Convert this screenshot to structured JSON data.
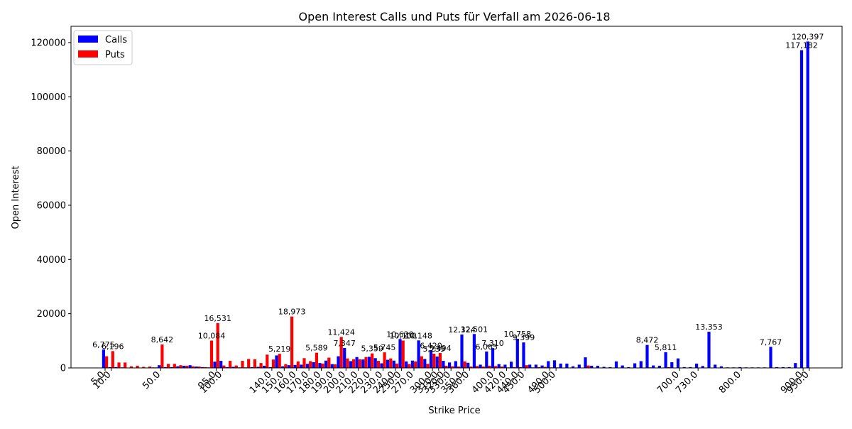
{
  "chart_data": {
    "type": "bar",
    "title": "Open Interest Calls und Puts für Verfall am 2026-06-18",
    "xlabel": "Strike Price",
    "ylabel": "Open Interest",
    "ylim": [
      0,
      126000
    ],
    "yticks": [
      0,
      20000,
      40000,
      60000,
      80000,
      100000,
      120000
    ],
    "xticks_visible": [
      "5.0",
      "10.0",
      "50.0",
      "95.0",
      "100.0",
      "140.0",
      "150.0",
      "160.0",
      "170.0",
      "180.0",
      "190.0",
      "200.0",
      "210.0",
      "220.0",
      "230.0",
      "240.0",
      "250.0",
      "270.0",
      "300.0",
      "310.0",
      "320.0",
      "330.0",
      "350.0",
      "360.0",
      "400.0",
      "420.0",
      "440.0",
      "450.0",
      "490.0",
      "500.0",
      "700.0",
      "730.0",
      "800.0",
      "900.0",
      "950.0",
      "960.0"
    ],
    "legend_position": "top-left",
    "grid": false,
    "series": [
      {
        "name": "Calls",
        "color": "#0000ff"
      },
      {
        "name": "Puts",
        "color": "#ff0000"
      }
    ],
    "strikes": [
      {
        "k": 5,
        "c": 6775,
        "p": 4300
      },
      {
        "k": 10,
        "c": 300,
        "p": 6196
      },
      {
        "k": 15,
        "c": 300,
        "p": 2000
      },
      {
        "k": 20,
        "c": 200,
        "p": 2000
      },
      {
        "k": 25,
        "c": 100,
        "p": 600
      },
      {
        "k": 30,
        "c": 100,
        "p": 800
      },
      {
        "k": 35,
        "c": 100,
        "p": 400
      },
      {
        "k": 40,
        "c": 100,
        "p": 500
      },
      {
        "k": 45,
        "c": 200,
        "p": 200
      },
      {
        "k": 50,
        "c": 1000,
        "p": 8642
      },
      {
        "k": 55,
        "c": 300,
        "p": 1500
      },
      {
        "k": 60,
        "c": 300,
        "p": 1500
      },
      {
        "k": 65,
        "c": 600,
        "p": 1000
      },
      {
        "k": 70,
        "c": 800,
        "p": 800
      },
      {
        "k": 75,
        "c": 1000,
        "p": 600
      },
      {
        "k": 80,
        "c": 500,
        "p": 500
      },
      {
        "k": 85,
        "c": 300,
        "p": 300
      },
      {
        "k": 90,
        "c": 200,
        "p": 10084
      },
      {
        "k": 95,
        "c": 2300,
        "p": 16531
      },
      {
        "k": 100,
        "c": 2600,
        "p": 900
      },
      {
        "k": 105,
        "c": 300,
        "p": 2600
      },
      {
        "k": 110,
        "c": 400,
        "p": 900
      },
      {
        "k": 115,
        "c": 200,
        "p": 2600
      },
      {
        "k": 120,
        "c": 200,
        "p": 3300
      },
      {
        "k": 125,
        "c": 300,
        "p": 3200
      },
      {
        "k": 130,
        "c": 400,
        "p": 1800
      },
      {
        "k": 135,
        "c": 800,
        "p": 4900
      },
      {
        "k": 140,
        "c": 300,
        "p": 3100
      },
      {
        "k": 145,
        "c": 4600,
        "p": 5219
      },
      {
        "k": 150,
        "c": 600,
        "p": 1400
      },
      {
        "k": 155,
        "c": 1000,
        "p": 18973
      },
      {
        "k": 160,
        "c": 1100,
        "p": 2400
      },
      {
        "k": 165,
        "c": 1200,
        "p": 3600
      },
      {
        "k": 170,
        "c": 1500,
        "p": 2500
      },
      {
        "k": 175,
        "c": 2100,
        "p": 5589
      },
      {
        "k": 180,
        "c": 1800,
        "p": 1600
      },
      {
        "k": 185,
        "c": 2700,
        "p": 3800
      },
      {
        "k": 190,
        "c": 1400,
        "p": 1300
      },
      {
        "k": 195,
        "c": 4300,
        "p": 11424
      },
      {
        "k": 200,
        "c": 7347,
        "p": 3500
      },
      {
        "k": 205,
        "c": 2500,
        "p": 3200
      },
      {
        "k": 210,
        "c": 4000,
        "p": 3200
      },
      {
        "k": 215,
        "c": 3100,
        "p": 4000
      },
      {
        "k": 220,
        "c": 4100,
        "p": 5359
      },
      {
        "k": 225,
        "c": 3600,
        "p": 2600
      },
      {
        "k": 230,
        "c": 1700,
        "p": 5745
      },
      {
        "k": 235,
        "c": 3000,
        "p": 3500
      },
      {
        "k": 240,
        "c": 2700,
        "p": 1600
      },
      {
        "k": 250,
        "c": 10620,
        "p": 10100
      },
      {
        "k": 260,
        "c": 2400,
        "p": 1400
      },
      {
        "k": 270,
        "c": 2700,
        "p": 2400
      },
      {
        "k": 280,
        "c": 10148,
        "p": 4300
      },
      {
        "k": 290,
        "c": 3300,
        "p": 1500
      },
      {
        "k": 300,
        "c": 6420,
        "p": 5239
      },
      {
        "k": 310,
        "c": 4200,
        "p": 5494
      },
      {
        "k": 320,
        "c": 2600,
        "p": 800
      },
      {
        "k": 330,
        "c": 2000,
        "p": 600
      },
      {
        "k": 340,
        "c": 2500,
        "p": 500
      },
      {
        "k": 350,
        "c": 12324,
        "p": 2400
      },
      {
        "k": 360,
        "c": 1900,
        "p": 500
      },
      {
        "k": 370,
        "c": 12501,
        "p": 700
      },
      {
        "k": 380,
        "c": 1200,
        "p": 500
      },
      {
        "k": 390,
        "c": 6065,
        "p": 800
      },
      {
        "k": 400,
        "c": 7310,
        "p": 700
      },
      {
        "k": 410,
        "c": 1400,
        "p": 500
      },
      {
        "k": 420,
        "c": 1200,
        "p": 200
      },
      {
        "k": 430,
        "c": 2300,
        "p": 300
      },
      {
        "k": 440,
        "c": 10758,
        "p": 300
      },
      {
        "k": 450,
        "c": 9399,
        "p": 1000
      },
      {
        "k": 460,
        "c": 1200,
        "p": 200
      },
      {
        "k": 470,
        "c": 1200,
        "p": 300
      },
      {
        "k": 480,
        "c": 900,
        "p": 400
      },
      {
        "k": 490,
        "c": 2500,
        "p": 200
      },
      {
        "k": 500,
        "c": 2800,
        "p": 200
      },
      {
        "k": 510,
        "c": 1600,
        "p": 100
      },
      {
        "k": 520,
        "c": 1600,
        "p": 100
      },
      {
        "k": 530,
        "c": 600,
        "p": 100
      },
      {
        "k": 540,
        "c": 1200,
        "p": 100
      },
      {
        "k": 550,
        "c": 3900,
        "p": 900
      },
      {
        "k": 560,
        "c": 800,
        "p": 100
      },
      {
        "k": 570,
        "c": 800,
        "p": 100
      },
      {
        "k": 580,
        "c": 400,
        "p": 100
      },
      {
        "k": 590,
        "c": 300,
        "p": 100
      },
      {
        "k": 600,
        "c": 2400,
        "p": 100
      },
      {
        "k": 610,
        "c": 900,
        "p": 100
      },
      {
        "k": 620,
        "c": 300,
        "p": 100
      },
      {
        "k": 630,
        "c": 1700,
        "p": 100
      },
      {
        "k": 640,
        "c": 2500,
        "p": 100
      },
      {
        "k": 650,
        "c": 8472,
        "p": 200
      },
      {
        "k": 660,
        "c": 900,
        "p": 100
      },
      {
        "k": 670,
        "c": 800,
        "p": 100
      },
      {
        "k": 680,
        "c": 5811,
        "p": 300
      },
      {
        "k": 690,
        "c": 2100,
        "p": 100
      },
      {
        "k": 700,
        "c": 3500,
        "p": 100
      },
      {
        "k": 710,
        "c": 300,
        "p": 100
      },
      {
        "k": 720,
        "c": 300,
        "p": 100
      },
      {
        "k": 730,
        "c": 1600,
        "p": 100
      },
      {
        "k": 740,
        "c": 700,
        "p": 100
      },
      {
        "k": 750,
        "c": 13353,
        "p": 100
      },
      {
        "k": 760,
        "c": 1200,
        "p": 100
      },
      {
        "k": 770,
        "c": 600,
        "p": 100
      },
      {
        "k": 780,
        "c": 200,
        "p": 100
      },
      {
        "k": 790,
        "c": 200,
        "p": 100
      },
      {
        "k": 800,
        "c": 300,
        "p": 100
      },
      {
        "k": 810,
        "c": 200,
        "p": 100
      },
      {
        "k": 820,
        "c": 200,
        "p": 100
      },
      {
        "k": 830,
        "c": 200,
        "p": 100
      },
      {
        "k": 840,
        "c": 200,
        "p": 100
      },
      {
        "k": 850,
        "c": 7767,
        "p": 100
      },
      {
        "k": 860,
        "c": 300,
        "p": 100
      },
      {
        "k": 870,
        "c": 300,
        "p": 100
      },
      {
        "k": 880,
        "c": 300,
        "p": 100
      },
      {
        "k": 890,
        "c": 1800,
        "p": 100
      },
      {
        "k": 900,
        "c": 117182,
        "p": 100
      },
      {
        "k": 950,
        "c": 120397,
        "p": 100
      }
    ],
    "labeled_values": [
      6775,
      6196,
      8642,
      10084,
      16531,
      5219,
      18973,
      5589,
      11424,
      7347,
      5359,
      5745,
      10620,
      10100,
      10148,
      6420,
      5239,
      5494,
      12324,
      12501,
      6065,
      7310,
      10758,
      9399,
      8472,
      5811,
      13353,
      7767,
      117182,
      120397
    ]
  }
}
